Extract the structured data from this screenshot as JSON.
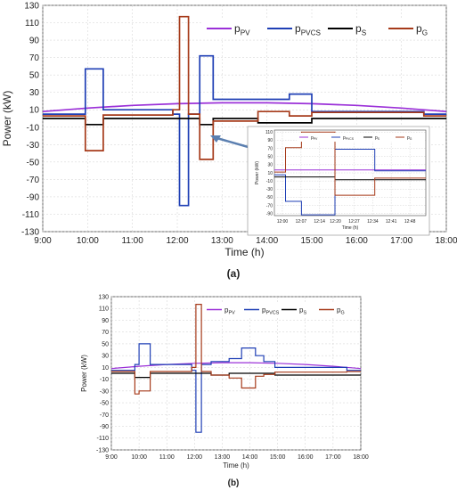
{
  "chart_data": [
    {
      "panel": "(a)",
      "type": "line",
      "xlabel": "Time (h)",
      "ylabel": "Power (kW)",
      "xlim": [
        9,
        18
      ],
      "ylim": [
        -130,
        130
      ],
      "x_ticks": [
        "9:00",
        "10:00",
        "11:00",
        "12:00",
        "13:00",
        "14:00",
        "15:00",
        "16:00",
        "17:00",
        "18:00"
      ],
      "y_ticks": [
        130,
        110,
        90,
        70,
        50,
        30,
        10,
        -10,
        -30,
        -50,
        -70,
        -90,
        -110,
        -130
      ],
      "grid": true,
      "legend": "top-right",
      "series": [
        {
          "name": "p_PV",
          "color": "#9b30d8",
          "x": [
            9,
            10,
            11,
            12,
            13,
            14,
            15,
            16,
            17,
            18
          ],
          "y": [
            8,
            12,
            15,
            17,
            18,
            18,
            17,
            15,
            12,
            8
          ]
        },
        {
          "name": "p_PVCS",
          "color": "#1f3fb5",
          "x": [
            9,
            9.1,
            9.1,
            9.95,
            9.95,
            10.35,
            10.35,
            11.9,
            11.9,
            12.05,
            12.05,
            12.25,
            12.25,
            12.5,
            12.5,
            12.8,
            12.8,
            13.8,
            13.8,
            14.5,
            14.5,
            15,
            15,
            17.5,
            17.5,
            18
          ],
          "y": [
            5,
            5,
            5,
            5,
            57,
            57,
            10,
            10,
            5,
            5,
            -100,
            -100,
            5,
            5,
            72,
            72,
            22,
            22,
            22,
            22,
            28,
            28,
            8,
            8,
            5,
            5
          ]
        },
        {
          "name": "p_S",
          "color": "#000000",
          "x": [
            9,
            9.95,
            9.95,
            10.35,
            10.35,
            12.5,
            12.5,
            12.8,
            12.8,
            13.8,
            13.8,
            15,
            15,
            18
          ],
          "y": [
            0,
            0,
            -7,
            -7,
            0,
            0,
            -7,
            -7,
            0,
            0,
            -5,
            -5,
            0,
            0
          ]
        },
        {
          "name": "p_G",
          "color": "#a63a1a",
          "x": [
            9,
            9.1,
            9.1,
            9.95,
            9.95,
            10.35,
            10.35,
            11.9,
            11.9,
            12.05,
            12.05,
            12.25,
            12.25,
            12.5,
            12.5,
            12.8,
            12.8,
            13.8,
            13.8,
            14.5,
            14.5,
            15,
            15,
            17.5,
            17.5,
            18
          ],
          "y": [
            3,
            3,
            3,
            3,
            -37,
            -37,
            4,
            4,
            10,
            10,
            117,
            117,
            5,
            5,
            -47,
            -47,
            -3,
            -3,
            8,
            8,
            3,
            3,
            7,
            7,
            3,
            3
          ]
        }
      ]
    },
    {
      "panel": "(a) inset",
      "type": "line",
      "xlabel": "Time (h)",
      "ylabel": "Power (kW)",
      "xlim": [
        11.95,
        12.9
      ],
      "ylim": [
        -95,
        115
      ],
      "x_ticks": [
        "12:00",
        "12:07",
        "12:14",
        "12:20",
        "12:27",
        "12:34",
        "12:41",
        "12:48"
      ],
      "y_ticks": [
        110,
        90,
        70,
        50,
        30,
        10,
        -10,
        -30,
        -50,
        -70,
        -90
      ],
      "grid": true,
      "legend": "top",
      "series": [
        {
          "name": "p_PV",
          "color": "#9b30d8",
          "x": [
            11.95,
            12.9
          ],
          "y": [
            17,
            17
          ]
        },
        {
          "name": "p_PVCS",
          "color": "#1f3fb5",
          "x": [
            11.95,
            12.02,
            12.02,
            12.12,
            12.12,
            12.33,
            12.33,
            12.58,
            12.58,
            12.9
          ],
          "y": [
            5,
            5,
            -60,
            -60,
            -93,
            -93,
            68,
            68,
            15,
            15
          ]
        },
        {
          "name": "p_S",
          "color": "#000000",
          "x": [
            11.95,
            12.33,
            12.33,
            12.9
          ],
          "y": [
            0,
            0,
            -7,
            -7
          ]
        },
        {
          "name": "p_G",
          "color": "#a63a1a",
          "x": [
            11.95,
            12.02,
            12.02,
            12.12,
            12.12,
            12.33,
            12.33,
            12.58,
            12.58,
            12.9
          ],
          "y": [
            12,
            12,
            72,
            72,
            110,
            110,
            -45,
            -45,
            -3,
            -3
          ]
        }
      ]
    },
    {
      "panel": "(b)",
      "type": "line",
      "xlabel": "Time (h)",
      "ylabel": "Power (kW)",
      "xlim": [
        9,
        18
      ],
      "ylim": [
        -130,
        130
      ],
      "x_ticks": [
        "9:00",
        "10:00",
        "11:00",
        "12:00",
        "13:00",
        "14:00",
        "15:00",
        "16:00",
        "17:00",
        "18:00"
      ],
      "y_ticks": [
        130,
        110,
        90,
        70,
        50,
        30,
        10,
        -10,
        -30,
        -50,
        -70,
        -90,
        -110,
        -130
      ],
      "grid": true,
      "legend": "top-right",
      "series": [
        {
          "name": "p_PV",
          "color": "#9b30d8",
          "x": [
            9,
            10,
            11,
            12,
            13,
            14,
            15,
            16,
            17,
            18
          ],
          "y": [
            8,
            12,
            15,
            17,
            18,
            18,
            17,
            15,
            12,
            8
          ]
        },
        {
          "name": "p_PVCS",
          "color": "#1f3fb5",
          "x": [
            9,
            9.85,
            9.85,
            10,
            10,
            10.4,
            10.4,
            11.9,
            11.9,
            12.05,
            12.05,
            12.25,
            12.25,
            12.6,
            12.6,
            13.25,
            13.25,
            13.7,
            13.7,
            14.2,
            14.2,
            14.5,
            14.5,
            14.9,
            14.9,
            17.5,
            17.5,
            18
          ],
          "y": [
            5,
            5,
            15,
            15,
            50,
            50,
            15,
            15,
            5,
            5,
            -100,
            -100,
            15,
            15,
            20,
            20,
            25,
            25,
            43,
            43,
            30,
            30,
            20,
            20,
            10,
            10,
            5,
            5
          ]
        },
        {
          "name": "p_S",
          "color": "#000000",
          "x": [
            9,
            9.85,
            9.85,
            10.4,
            10.4,
            12.6,
            12.6,
            13.25,
            13.25,
            14.9,
            14.9,
            18
          ],
          "y": [
            0,
            0,
            -7,
            -7,
            0,
            0,
            -3,
            -3,
            0,
            0,
            -3,
            -3
          ]
        },
        {
          "name": "p_G",
          "color": "#a63a1a",
          "x": [
            9,
            9.85,
            9.85,
            10,
            10,
            10.4,
            10.4,
            11.9,
            11.9,
            12.05,
            12.05,
            12.25,
            12.25,
            12.6,
            12.6,
            13.25,
            13.25,
            13.7,
            13.7,
            14.2,
            14.2,
            14.5,
            14.5,
            14.9,
            14.9,
            17.5,
            17.5,
            18
          ],
          "y": [
            3,
            3,
            -35,
            -35,
            -30,
            -30,
            3,
            3,
            10,
            10,
            117,
            117,
            3,
            3,
            -3,
            -3,
            -8,
            -8,
            -25,
            -25,
            -5,
            -5,
            -2,
            -2,
            2,
            2,
            3,
            3
          ]
        }
      ]
    }
  ]
}
